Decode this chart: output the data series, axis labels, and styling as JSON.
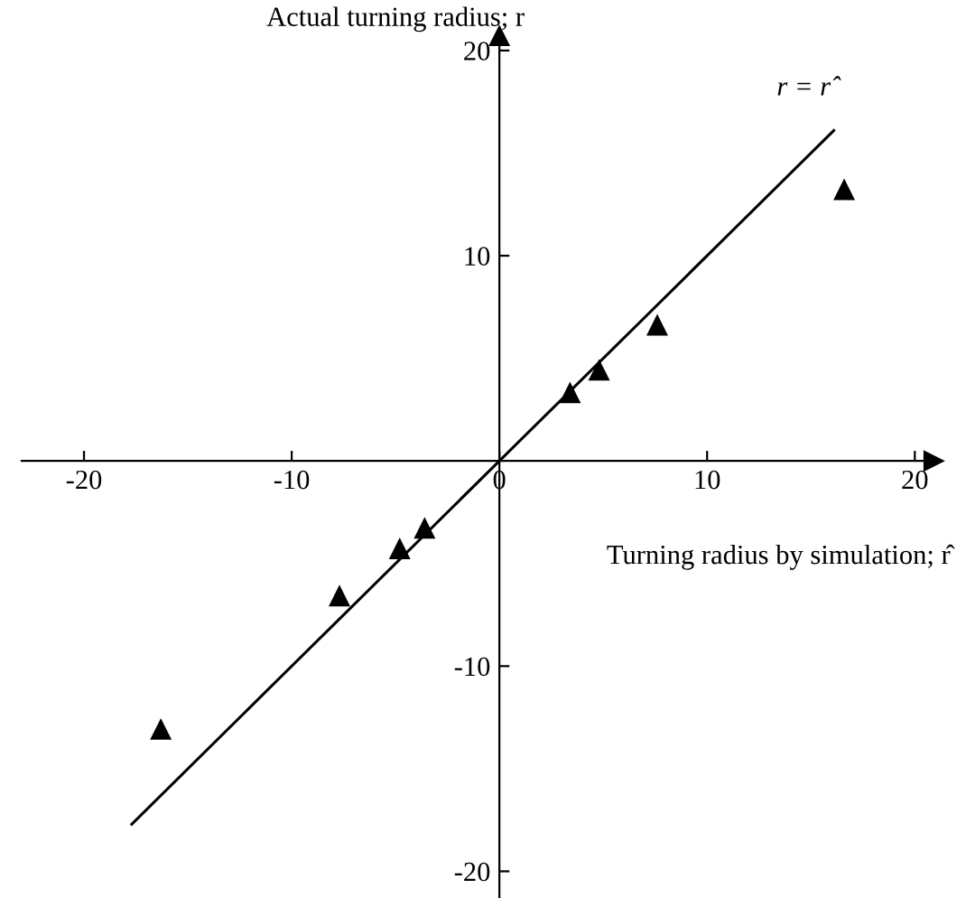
{
  "chart_data": {
    "type": "scatter",
    "xlabel": "Turning radius by simulation; r̂",
    "ylabel": "Actual turning radius; r",
    "xlim": [
      -23,
      20.9
    ],
    "ylim": [
      -21.3,
      20.7
    ],
    "xticks": [
      -20,
      -10,
      0,
      10,
      20
    ],
    "yticks": [
      -20,
      -10,
      10,
      20
    ],
    "grid": false,
    "marker": "triangle",
    "series": [
      {
        "color": "#000000",
        "x": [
          -16.3,
          -7.7,
          -4.8,
          -3.6,
          3.4,
          4.8,
          7.6,
          16.6
        ],
        "values": [
          -13.1,
          -6.6,
          -4.3,
          -3.3,
          3.3,
          4.4,
          6.6,
          13.2
        ]
      },
      {
        "type": "line",
        "color": "#000000",
        "line_style": "solid",
        "marker": "none",
        "x": [
          -17.7,
          16.1
        ],
        "values": [
          -17.7,
          16.1
        ]
      }
    ],
    "annotations": [
      {
        "text": "r = r̂",
        "x": 16.1,
        "y": 16.1
      }
    ]
  }
}
